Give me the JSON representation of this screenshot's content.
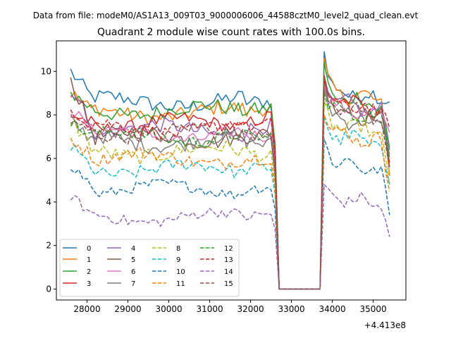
{
  "chart_data": {
    "type": "line",
    "suptitle": "Data from file: modeM0/AS1A13_009T03_9000006006_44588cztM0_level2_quad_clean.evt",
    "title": "Quadrant 2 module wise count rates with 100.0s bins.",
    "xlabel": "",
    "ylabel": "",
    "x_offset_label": "+4.413e8",
    "xlim": [
      27250,
      35800
    ],
    "ylim": [
      -0.5,
      11.4
    ],
    "x_ticks": [
      28000,
      29000,
      30000,
      31000,
      32000,
      33000,
      34000,
      35000
    ],
    "x_tick_labels": [
      "28000",
      "29000",
      "30000",
      "31000",
      "32000",
      "33000",
      "34000",
      "35000"
    ],
    "y_ticks": [
      0,
      2,
      4,
      6,
      8,
      10
    ],
    "y_tick_labels": [
      "0",
      "2",
      "4",
      "6",
      "8",
      "10"
    ],
    "x_grid": {
      "segments": [
        [
          27600,
          32600
        ],
        [
          32700,
          33700
        ],
        [
          33800,
          35400
        ]
      ],
      "step": 100
    },
    "legend": {
      "placement": "lower-left",
      "columns": 4
    },
    "series": [
      {
        "name": "0",
        "color": "#1f77b4",
        "style": "solid",
        "level1": 8.6,
        "level2": 9.2,
        "start1": 10.0,
        "end1": 8.6,
        "start2": 10.9,
        "end2": 8.6,
        "noise": 0.35
      },
      {
        "name": "1",
        "color": "#ff7f0e",
        "style": "solid",
        "level1": 8.1,
        "level2": 9.1,
        "start1": 9.0,
        "end1": 8.4,
        "start2": 10.6,
        "end2": 5.2,
        "noise": 0.35
      },
      {
        "name": "2",
        "color": "#2ca02c",
        "style": "solid",
        "level1": 8.2,
        "level2": 8.9,
        "start1": 9.0,
        "end1": 8.3,
        "start2": 10.4,
        "end2": 6.5,
        "noise": 0.35
      },
      {
        "name": "3",
        "color": "#d62728",
        "style": "solid",
        "level1": 7.6,
        "level2": 8.7,
        "start1": 8.0,
        "end1": 8.0,
        "start2": 9.8,
        "end2": 5.8,
        "noise": 0.3
      },
      {
        "name": "4",
        "color": "#9467bd",
        "style": "solid",
        "level1": 7.3,
        "level2": 8.6,
        "start1": 9.2,
        "end1": 7.6,
        "start2": 9.6,
        "end2": 6.4,
        "noise": 0.35
      },
      {
        "name": "5",
        "color": "#8c564b",
        "style": "solid",
        "level1": 7.0,
        "level2": 8.3,
        "start1": 9.6,
        "end1": 7.2,
        "start2": 9.7,
        "end2": 5.6,
        "noise": 0.35
      },
      {
        "name": "6",
        "color": "#e377c2",
        "style": "solid",
        "level1": 7.1,
        "level2": 8.4,
        "start1": 8.3,
        "end1": 7.0,
        "start2": 9.4,
        "end2": 7.2,
        "noise": 0.3
      },
      {
        "name": "7",
        "color": "#7f7f7f",
        "style": "solid",
        "level1": 6.8,
        "level2": 8.0,
        "start1": 7.7,
        "end1": 6.6,
        "start2": 9.2,
        "end2": 6.2,
        "noise": 0.35
      },
      {
        "name": "8",
        "color": "#bcbd22",
        "style": "dashed",
        "level1": 6.3,
        "level2": 7.6,
        "start1": 7.8,
        "end1": 6.0,
        "start2": 8.6,
        "end2": 4.8,
        "noise": 0.35
      },
      {
        "name": "9",
        "color": "#17becf",
        "style": "dashed",
        "level1": 5.5,
        "level2": 7.1,
        "start1": 6.5,
        "end1": 5.6,
        "start2": 7.9,
        "end2": 4.8,
        "noise": 0.3
      },
      {
        "name": "10",
        "color": "#1f77b4",
        "style": "dashed",
        "level1": 4.6,
        "level2": 5.9,
        "start1": 5.7,
        "end1": 4.7,
        "start2": 6.9,
        "end2": 3.4,
        "noise": 0.25
      },
      {
        "name": "11",
        "color": "#ff7f0e",
        "style": "dashed",
        "level1": 6.0,
        "level2": 7.2,
        "start1": 6.9,
        "end1": 6.0,
        "start2": 8.0,
        "end2": 4.5,
        "noise": 0.3
      },
      {
        "name": "12",
        "color": "#2ca02c",
        "style": "dashed",
        "level1": 7.0,
        "level2": 8.3,
        "start1": 7.6,
        "end1": 7.0,
        "start2": 9.0,
        "end2": 6.0,
        "noise": 0.3
      },
      {
        "name": "13",
        "color": "#d62728",
        "style": "dashed",
        "level1": 7.4,
        "level2": 8.6,
        "start1": 8.3,
        "end1": 7.6,
        "start2": 9.6,
        "end2": 7.4,
        "noise": 0.3
      },
      {
        "name": "14",
        "color": "#9467bd",
        "style": "dashed",
        "level1": 3.3,
        "level2": 4.3,
        "start1": 4.3,
        "end1": 3.5,
        "start2": 4.8,
        "end2": 2.4,
        "noise": 0.25
      },
      {
        "name": "15",
        "color": "#8c564b",
        "style": "dashed",
        "level1": 7.2,
        "level2": 8.4,
        "start1": 7.6,
        "end1": 7.2,
        "start2": 9.6,
        "end2": 5.6,
        "noise": 0.3
      }
    ]
  }
}
